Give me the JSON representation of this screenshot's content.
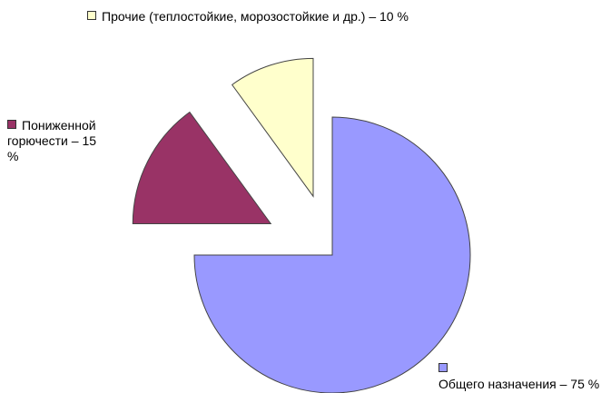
{
  "chart_data": {
    "type": "pie",
    "categories": [
      "Общего назначения – 75 %",
      "Пониженной горючести – 15 %",
      "Прочие (теплостойкие, морозостойкие и др.) – 10 %"
    ],
    "values": [
      75,
      15,
      10
    ],
    "colors": [
      "#9999ff",
      "#993366",
      "#ffffcc"
    ]
  }
}
